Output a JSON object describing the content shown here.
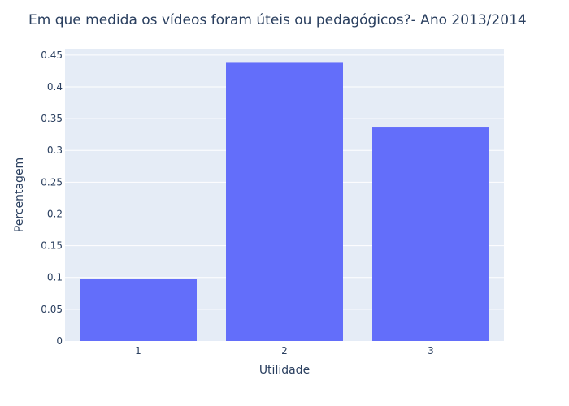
{
  "chart_data": {
    "type": "bar",
    "title": "Em que medida os vídeos foram úteis ou pedagógicos?- Ano 2013/2014",
    "xlabel": "Utilidade",
    "ylabel": "Percentagem",
    "categories": [
      "1",
      "2",
      "3"
    ],
    "values": [
      0.098,
      0.439,
      0.336
    ],
    "ylim": [
      0,
      0.46
    ],
    "yticks": [
      0,
      0.05,
      0.1,
      0.15,
      0.2,
      0.25,
      0.3,
      0.35,
      0.4,
      0.45
    ],
    "ytick_labels": [
      "0",
      "0.05",
      "0.1",
      "0.15",
      "0.2",
      "0.25",
      "0.3",
      "0.35",
      "0.4",
      "0.45"
    ],
    "grid": true,
    "colors": {
      "bar": "#636efa",
      "plot_background": "#e5ecf6",
      "grid": "#ffffff",
      "text": "#2a3f5f"
    }
  }
}
